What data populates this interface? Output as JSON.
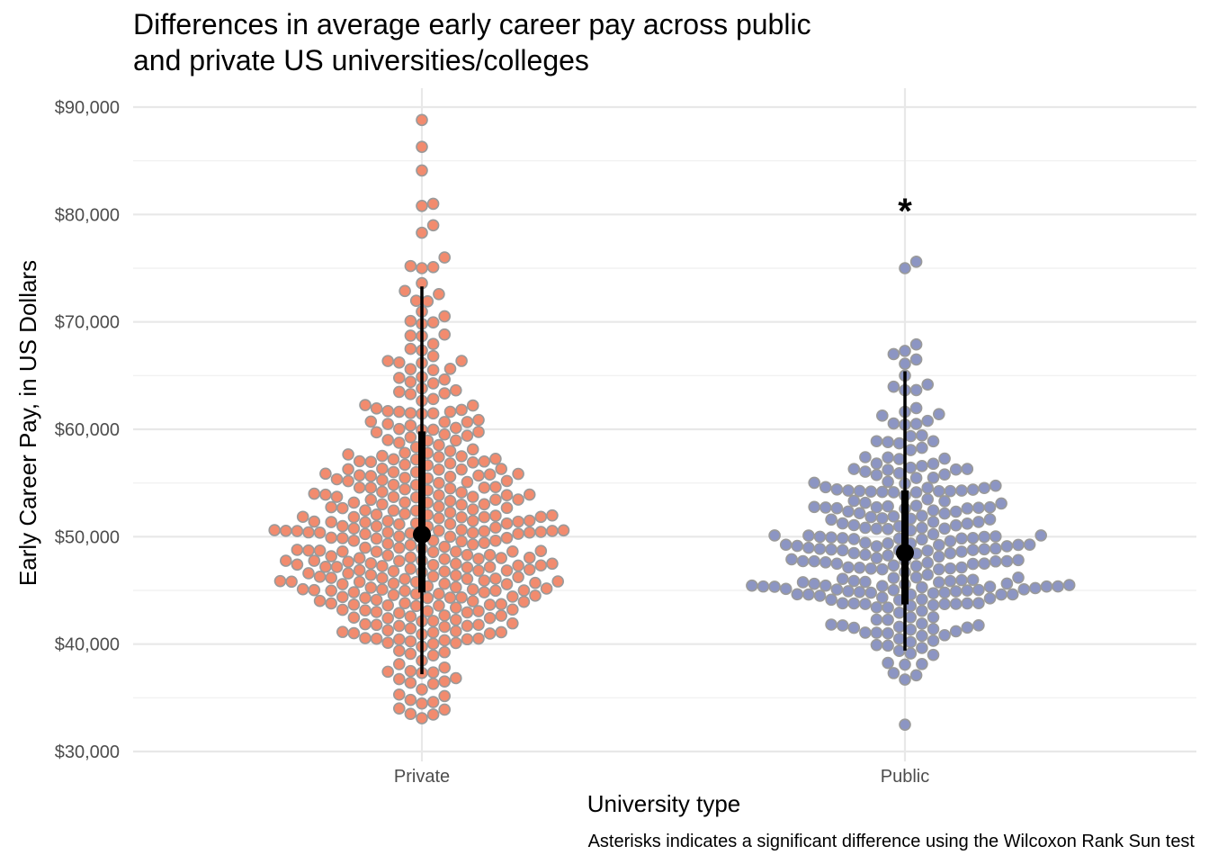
{
  "chart_data": {
    "type": "scatter",
    "subtype": "beeswarm",
    "title_lines": [
      "Differences in average early career pay across public",
      "and private US universities/colleges"
    ],
    "xlabel": "University type",
    "ylabel": "Early Career Pay, in US Dollars",
    "caption": "Asterisks indicates a significant difference using the Wilcoxon Rank Sun test",
    "categories": [
      "Private",
      "Public"
    ],
    "ylim": [
      29500,
      91500
    ],
    "y_ticks": [
      30000,
      40000,
      50000,
      60000,
      70000,
      80000,
      90000
    ],
    "y_tick_labels": [
      "$30,000",
      "$40,000",
      "$50,000",
      "$60,000",
      "$70,000",
      "$80,000",
      "$90,000"
    ],
    "grid": true,
    "legend": "none",
    "colors": {
      "Private": "#f28b6e",
      "Public": "#8c95c3",
      "point_stroke": "#9a9a9a",
      "summary": "#000000",
      "grid": "#e8e8e8"
    },
    "series": [
      {
        "category": "Private",
        "points": 370,
        "median": 50200,
        "interval_inner": [
          44800,
          59800
        ],
        "interval_outer": [
          37200,
          73300
        ],
        "outliers_high": [
          88800,
          86300,
          84100,
          81000,
          80800,
          79000,
          78300,
          76000,
          75200,
          75100,
          75000,
          73600
        ],
        "outliers_low": [
          36400,
          35300,
          34800,
          34600,
          33900,
          33500
        ],
        "distribution": [
          [
            34000,
            4
          ],
          [
            36000,
            6
          ],
          [
            38000,
            8
          ],
          [
            40000,
            16
          ],
          [
            42000,
            26
          ],
          [
            44000,
            34
          ],
          [
            46000,
            38
          ],
          [
            48000,
            40
          ],
          [
            50000,
            38
          ],
          [
            52000,
            32
          ],
          [
            54000,
            30
          ],
          [
            56000,
            26
          ],
          [
            58000,
            18
          ],
          [
            60000,
            16
          ],
          [
            62000,
            12
          ],
          [
            64000,
            10
          ],
          [
            66000,
            8
          ],
          [
            68000,
            6
          ],
          [
            70000,
            5
          ],
          [
            72000,
            4
          ]
        ],
        "annotation": ""
      },
      {
        "category": "Public",
        "points": 270,
        "median": 48500,
        "interval_inner": [
          43700,
          54300
        ],
        "interval_outer": [
          39400,
          65400
        ],
        "outliers_high": [
          75600,
          75000,
          67900,
          67300,
          67000,
          66500,
          66100,
          65000
        ],
        "outliers_low": [
          37300,
          37100,
          36700,
          32500
        ],
        "distribution": [
          [
            38000,
            4
          ],
          [
            40000,
            10
          ],
          [
            42000,
            18
          ],
          [
            44000,
            30
          ],
          [
            46000,
            34
          ],
          [
            48000,
            36
          ],
          [
            50000,
            32
          ],
          [
            52000,
            28
          ],
          [
            54000,
            22
          ],
          [
            56000,
            16
          ],
          [
            58000,
            10
          ],
          [
            60000,
            6
          ],
          [
            62000,
            4
          ],
          [
            64000,
            4
          ]
        ],
        "annotation": "*"
      }
    ]
  }
}
